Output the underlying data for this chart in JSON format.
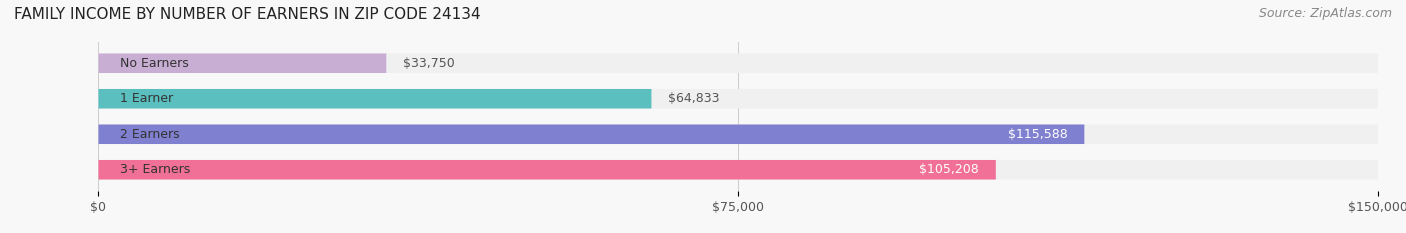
{
  "title": "FAMILY INCOME BY NUMBER OF EARNERS IN ZIP CODE 24134",
  "source": "Source: ZipAtlas.com",
  "categories": [
    "No Earners",
    "1 Earner",
    "2 Earners",
    "3+ Earners"
  ],
  "values": [
    33750,
    64833,
    115588,
    105208
  ],
  "bar_colors": [
    "#c9aed4",
    "#5bbfbf",
    "#8080d0",
    "#f07098"
  ],
  "bar_bg_color": "#f0f0f0",
  "value_labels": [
    "$33,750",
    "$64,833",
    "$115,588",
    "$105,208"
  ],
  "xlim": [
    0,
    150000
  ],
  "xticks": [
    0,
    75000,
    150000
  ],
  "xtick_labels": [
    "$0",
    "$75,000",
    "$150,000"
  ],
  "background_color": "#f8f8f8",
  "title_fontsize": 11,
  "source_fontsize": 9,
  "label_fontsize": 9,
  "tick_fontsize": 9,
  "bar_height": 0.55,
  "bar_label_color_inside": "#ffffff",
  "bar_label_color_outside": "#555555",
  "category_label_color": "#333333"
}
